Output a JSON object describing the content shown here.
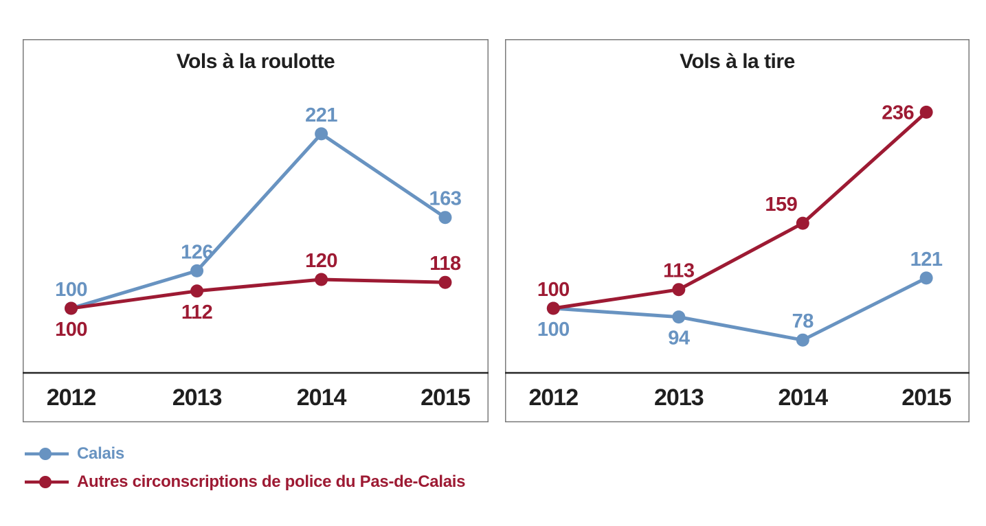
{
  "page": {
    "background": "#ffffff"
  },
  "colors": {
    "calais_blue": "#6893C1",
    "autres_red": "#9D1A33",
    "text_dark": "#1F1F1F",
    "chart_border": "#7A7A7A",
    "axis_line": "#262626"
  },
  "chart_data": [
    {
      "type": "line",
      "title": "Vols à la roulotte",
      "categories": [
        "2012",
        "2013",
        "2014",
        "2015"
      ],
      "xlabel": "",
      "ylabel": "",
      "y_axis_visible": false,
      "grid": false,
      "ylim_estimated": [
        55,
        285
      ],
      "index_base": 100,
      "series": [
        {
          "name": "Calais",
          "color": "#6893C1",
          "values": [
            100,
            126,
            221,
            163
          ],
          "label_pos": [
            "above",
            "above",
            "above",
            "above"
          ]
        },
        {
          "name": "Autres circonscriptions de police du Pas-de-Calais",
          "color": "#9D1A33",
          "values": [
            100,
            112,
            120,
            118
          ],
          "label_pos": [
            "below",
            "below",
            "above",
            "above"
          ]
        }
      ]
    },
    {
      "type": "line",
      "title": "Vols à la tire",
      "categories": [
        "2012",
        "2013",
        "2014",
        "2015"
      ],
      "xlabel": "",
      "ylabel": "",
      "y_axis_visible": false,
      "grid": false,
      "ylim_estimated": [
        55,
        285
      ],
      "index_base": 100,
      "series": [
        {
          "name": "Calais",
          "color": "#6893C1",
          "values": [
            100,
            94,
            78,
            121
          ],
          "label_pos": [
            "below",
            "below",
            "above",
            "above"
          ]
        },
        {
          "name": "Autres circonscriptions de police du Pas-de-Calais",
          "color": "#9D1A33",
          "values": [
            100,
            113,
            159,
            236
          ],
          "label_pos": [
            "above",
            "above",
            "above-left",
            "left"
          ]
        }
      ]
    }
  ],
  "legend": {
    "position": "bottom-left",
    "items": [
      {
        "label": "Calais",
        "color": "#6893C1"
      },
      {
        "label": "Autres circonscriptions de police du Pas-de-Calais",
        "color": "#9D1A33"
      }
    ]
  }
}
